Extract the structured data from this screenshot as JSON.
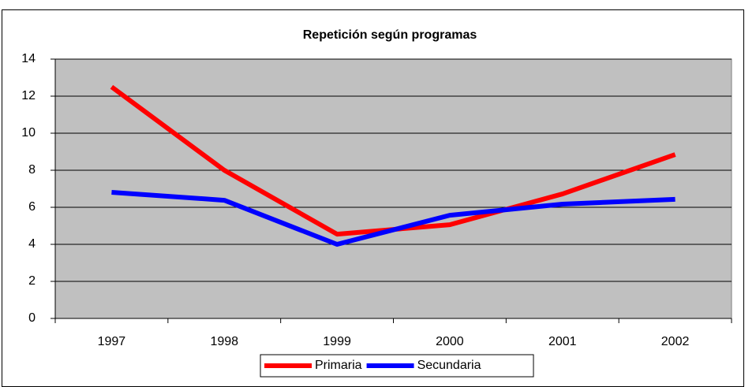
{
  "chart_data": {
    "type": "line",
    "title": "Repetición según programas",
    "categories": [
      "1997",
      "1998",
      "1999",
      "2000",
      "2001",
      "2002"
    ],
    "series": [
      {
        "name": "Primaria",
        "color": "#ff0000",
        "values": [
          12.5,
          8.0,
          4.55,
          5.06,
          6.72,
          8.85
        ]
      },
      {
        "name": "Secundaria",
        "color": "#0000ff",
        "values": [
          6.81,
          6.38,
          4.0,
          5.57,
          6.17,
          6.43
        ]
      }
    ],
    "ylim": [
      0,
      14
    ],
    "yticks": [
      0,
      2,
      4,
      6,
      8,
      10,
      12,
      14
    ],
    "grid": true,
    "legend": "bottom"
  }
}
